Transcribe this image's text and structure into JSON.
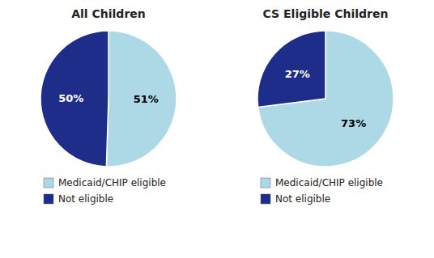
{
  "chart_data": [
    {
      "type": "pie",
      "title": "All Children",
      "categories": [
        "Medicaid/CHIP eligible",
        "Not eligible"
      ],
      "values": [
        51,
        50
      ],
      "value_labels": [
        "51%",
        "50%"
      ],
      "colors": [
        "#add8e6",
        "#1f2d8a"
      ],
      "data_labels": true,
      "legend": "bottom"
    },
    {
      "type": "pie",
      "title": "CS Eligible Children",
      "categories": [
        "Medicaid/CHIP eligible",
        "Not eligible"
      ],
      "values": [
        73,
        27
      ],
      "value_labels": [
        "73%",
        "27%"
      ],
      "colors": [
        "#add8e6",
        "#1f2d8a"
      ],
      "data_labels": true,
      "legend": "bottom"
    }
  ]
}
